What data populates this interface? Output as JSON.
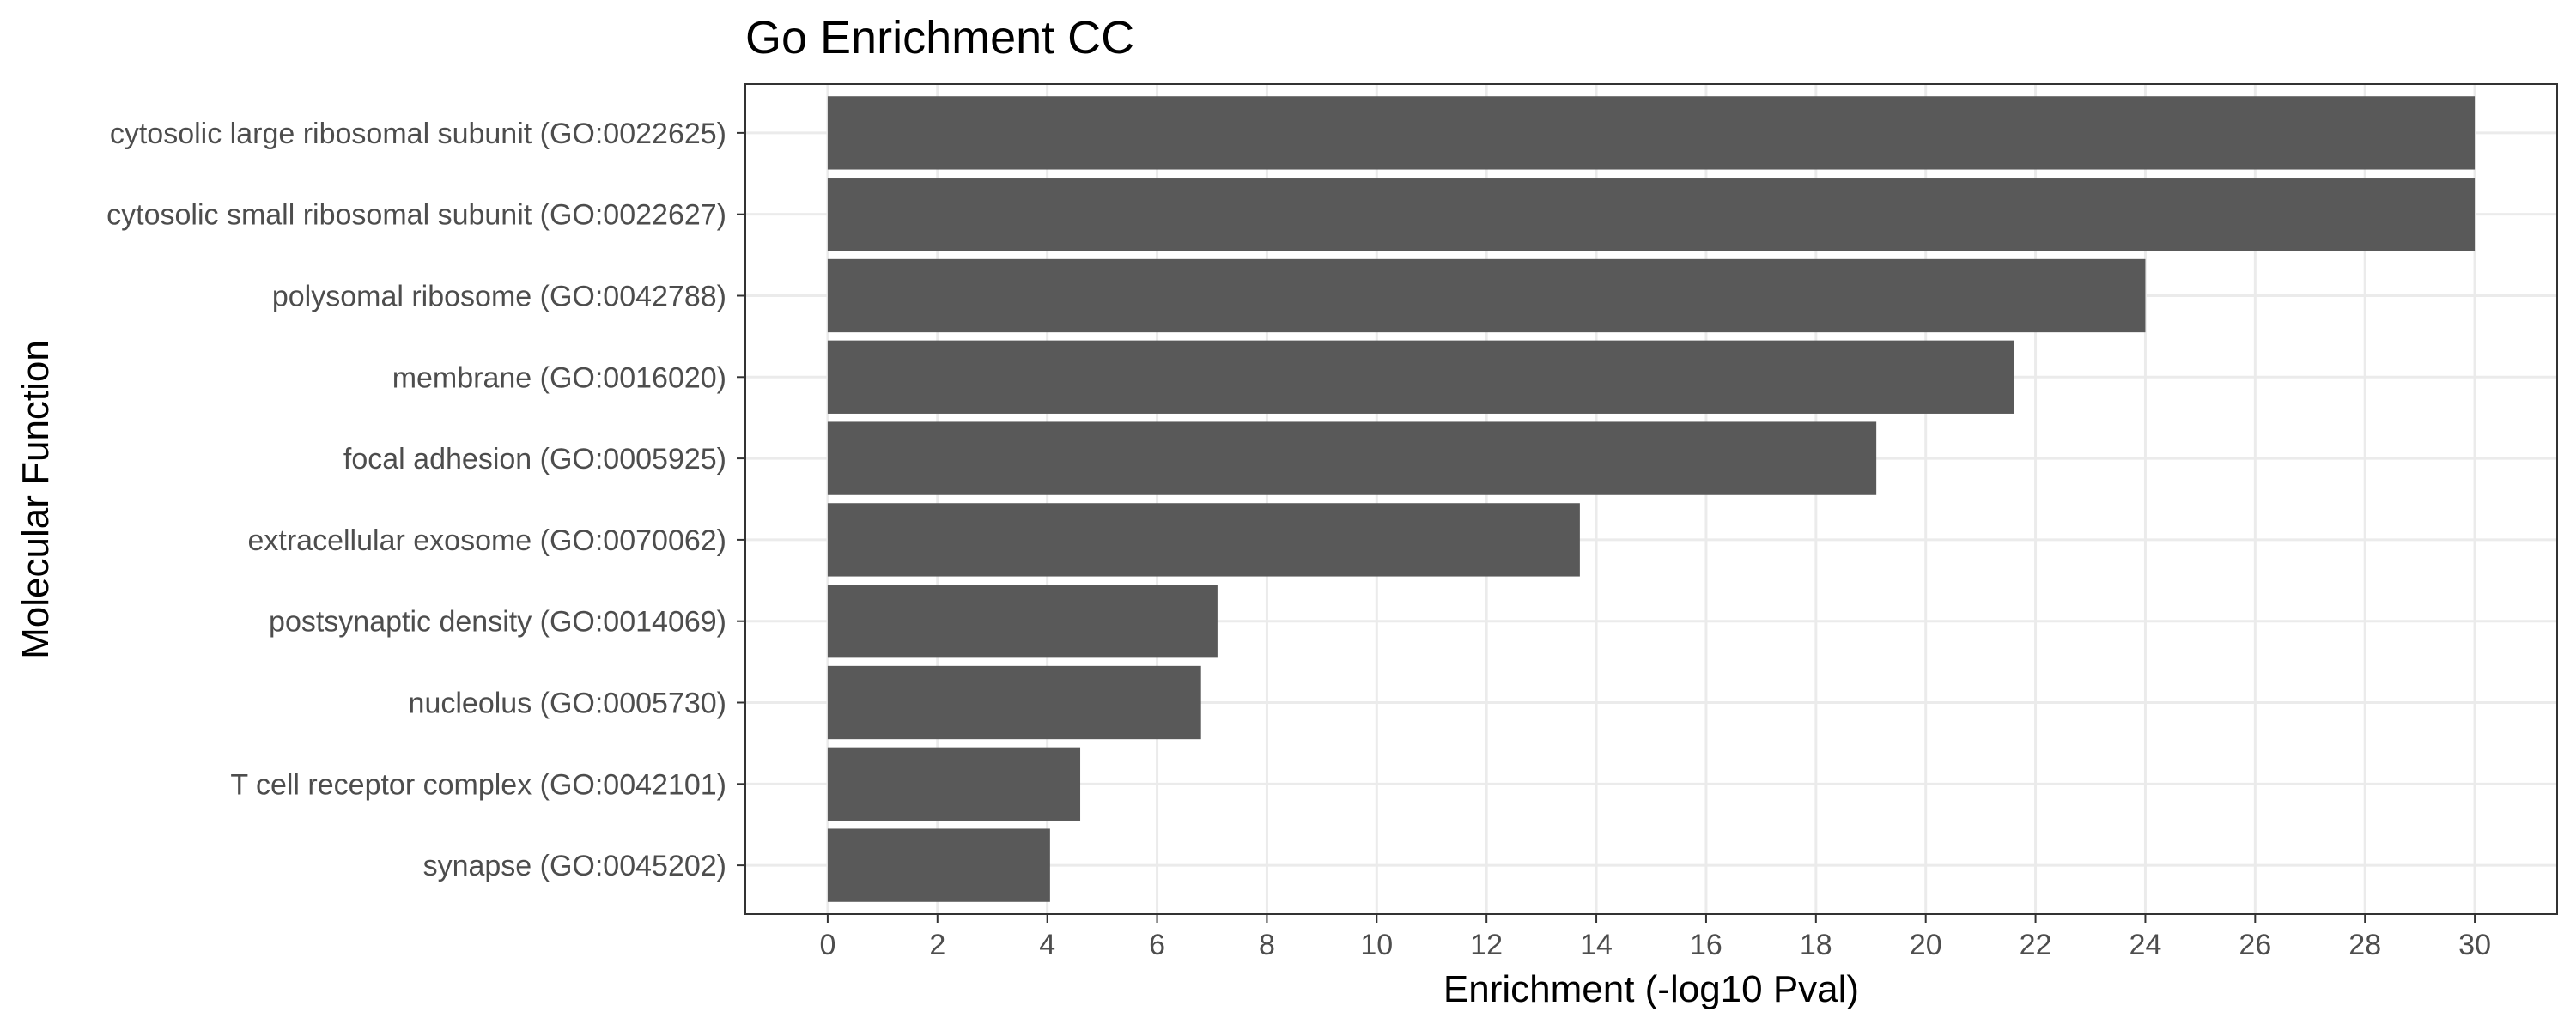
{
  "chart_data": {
    "type": "bar",
    "orientation": "horizontal",
    "title": "Go Enrichment CC",
    "xlabel": "Enrichment (-log10 Pval)",
    "ylabel": "Molecular Function",
    "categories": [
      "cytosolic large ribosomal subunit (GO:0022625)",
      "cytosolic small ribosomal subunit (GO:0022627)",
      "polysomal ribosome (GO:0042788)",
      "membrane (GO:0016020)",
      "focal adhesion (GO:0005925)",
      "extracellular exosome (GO:0070062)",
      "postsynaptic density (GO:0014069)",
      "nucleolus (GO:0005730)",
      "T cell receptor complex (GO:0042101)",
      "synapse (GO:0045202)"
    ],
    "values": [
      30.0,
      30.0,
      24.0,
      21.6,
      19.1,
      13.7,
      7.1,
      6.8,
      4.6,
      4.05
    ],
    "xlim": [
      -1.5,
      31.5
    ],
    "xticks": [
      0,
      2,
      4,
      6,
      8,
      10,
      12,
      14,
      16,
      18,
      20,
      22,
      24,
      26,
      28,
      30
    ],
    "grid": true,
    "bar_color": "#595959",
    "grid_color": "#ebebeb",
    "panel_border_color": "#333333"
  }
}
